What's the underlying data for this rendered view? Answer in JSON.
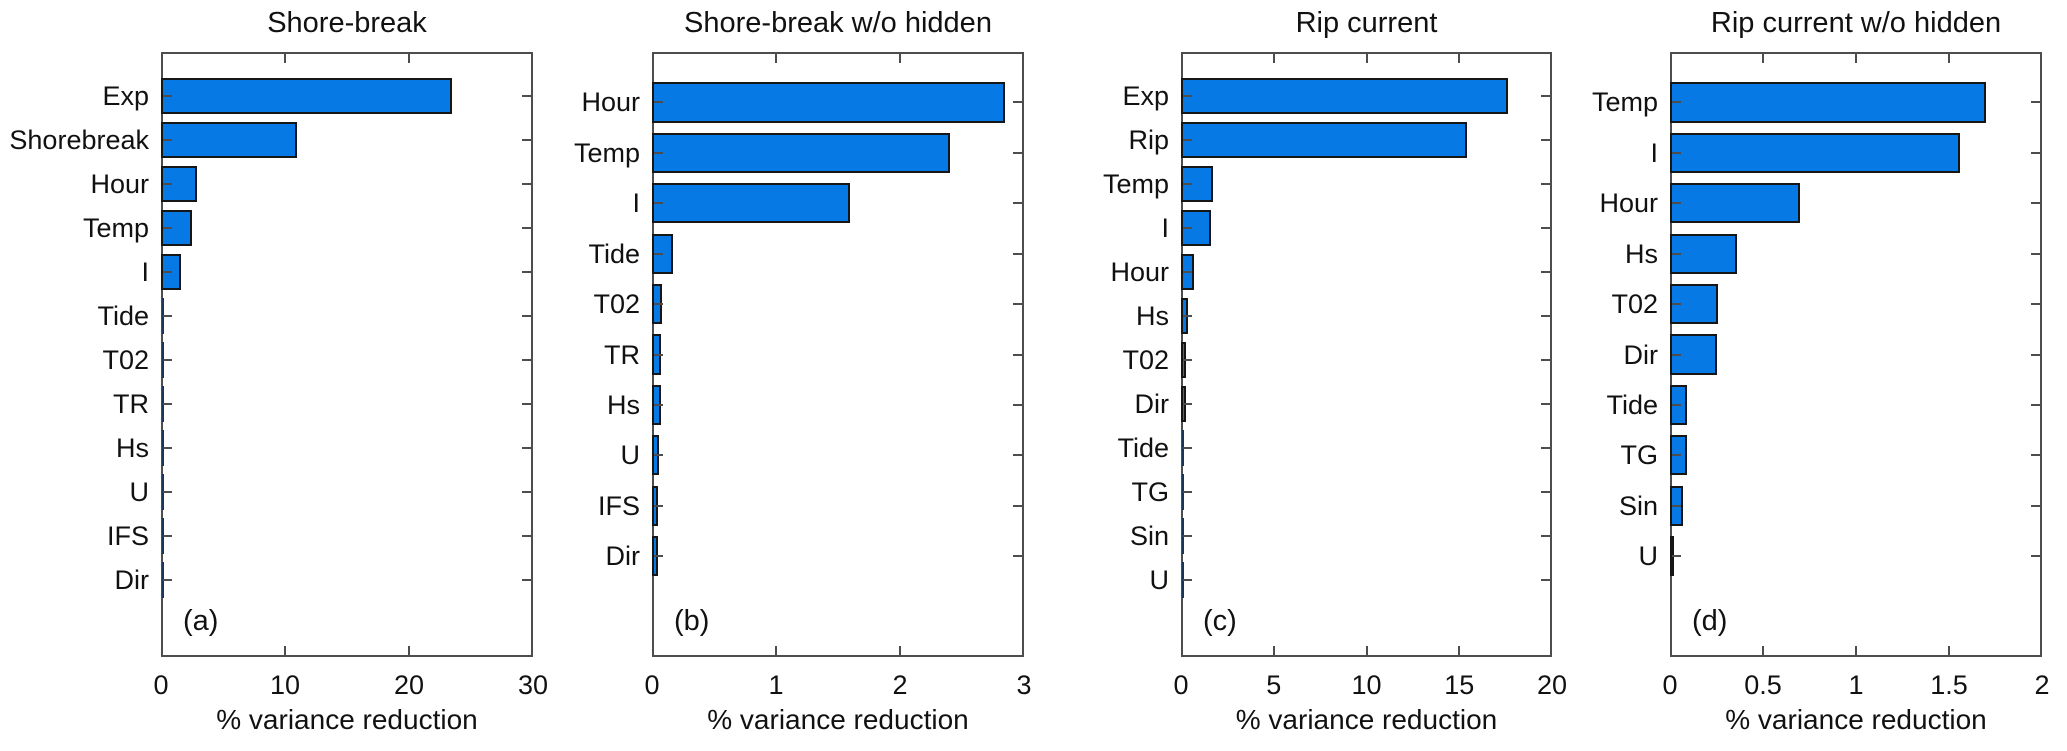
{
  "figure": {
    "xlabel": "% variance reduction",
    "bar_fill_color": "#0779E4",
    "bar_edge_color": "#161616",
    "tiny_bar_color": "#16365c",
    "axis_color": "#4d4d4d",
    "text_color": "#111111",
    "background_color": "#ffffff"
  },
  "chart_data": [
    {
      "type": "bar",
      "orientation": "horizontal",
      "title": "Shore-break",
      "panel_label": "(a)",
      "xlabel": "% variance reduction",
      "categories": [
        "Exp",
        "Shorebreak",
        "Hour",
        "Temp",
        "I",
        "Tide",
        "T02",
        "TR",
        "Hs",
        "U",
        "IFS",
        "Dir"
      ],
      "values": [
        23.5,
        11.0,
        2.9,
        2.5,
        1.6,
        0.18,
        0.07,
        0.06,
        0.06,
        0.04,
        0.05,
        0.04
      ],
      "xlim": [
        0,
        30
      ],
      "xticks": [
        0,
        10,
        20,
        30
      ],
      "xtick_labels": [
        "0",
        "10",
        "20",
        "30"
      ],
      "grid": false,
      "legend": null
    },
    {
      "type": "bar",
      "orientation": "horizontal",
      "title": "Shore-break w/o hidden",
      "panel_label": "(b)",
      "xlabel": "% variance reduction",
      "categories": [
        "Hour",
        "Temp",
        "I",
        "Tide",
        "T02",
        "TR",
        "Hs",
        "U",
        "IFS",
        "Dir"
      ],
      "values": [
        2.85,
        2.4,
        1.6,
        0.17,
        0.08,
        0.07,
        0.07,
        0.06,
        0.05,
        0.05
      ],
      "xlim": [
        0,
        3
      ],
      "xticks": [
        0,
        1,
        2,
        3
      ],
      "xtick_labels": [
        "0",
        "1",
        "2",
        "3"
      ],
      "grid": false,
      "legend": null
    },
    {
      "type": "bar",
      "orientation": "horizontal",
      "title": "Rip current",
      "panel_label": "(c)",
      "xlabel": "% variance reduction",
      "categories": [
        "Exp",
        "Rip",
        "Temp",
        "I",
        "Hour",
        "Hs",
        "T02",
        "Dir",
        "Tide",
        "TG",
        "Sin",
        "U"
      ],
      "values": [
        17.6,
        15.4,
        1.7,
        1.6,
        0.7,
        0.38,
        0.28,
        0.27,
        0.1,
        0.09,
        0.06,
        0.02
      ],
      "xlim": [
        0,
        20
      ],
      "xticks": [
        0,
        5,
        10,
        15,
        20
      ],
      "xtick_labels": [
        "0",
        "5",
        "10",
        "15",
        "20"
      ],
      "grid": false,
      "legend": null
    },
    {
      "type": "bar",
      "orientation": "horizontal",
      "title": "Rip current w/o hidden",
      "panel_label": "(d)",
      "xlabel": "% variance reduction",
      "categories": [
        "Temp",
        "I",
        "Hour",
        "Hs",
        "T02",
        "Dir",
        "Tide",
        "TG",
        "Sin",
        "U"
      ],
      "values": [
        1.7,
        1.56,
        0.7,
        0.36,
        0.26,
        0.25,
        0.09,
        0.09,
        0.07,
        0.02
      ],
      "xlim": [
        0,
        2
      ],
      "xticks": [
        0,
        0.5,
        1,
        1.5,
        2
      ],
      "xtick_labels": [
        "0",
        "0.5",
        "1",
        "1.5",
        "2"
      ],
      "grid": false,
      "legend": null
    }
  ]
}
